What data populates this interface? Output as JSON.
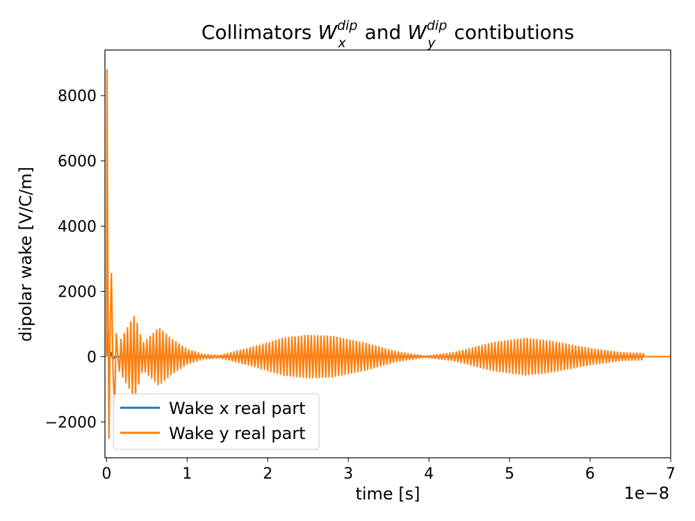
{
  "chart_data": {
    "type": "line",
    "title": {
      "prefix": "Collimators ",
      "w1": "W",
      "sub1": "x",
      "sup1": "dip",
      "mid": " and ",
      "w2": "W",
      "sub2": "y",
      "sup2": "dip",
      "suffix": " contibutions"
    },
    "xlabel": "time [s]",
    "ylabel": "dipolar wake [V/C/m]",
    "x_offset_label": "1e−8",
    "x_scale": 1e-08,
    "xlim": [
      -0.02,
      7.0
    ],
    "ylim": [
      -3100,
      9400
    ],
    "x_ticks": [
      0,
      1,
      2,
      3,
      4,
      5,
      6,
      7
    ],
    "x_tick_labels": [
      "0",
      "1",
      "2",
      "3",
      "4",
      "5",
      "6",
      "7"
    ],
    "y_ticks": [
      -2000,
      0,
      2000,
      4000,
      6000,
      8000
    ],
    "y_tick_labels": [
      "−2000",
      "0",
      "2000",
      "4000",
      "6000",
      "8000"
    ],
    "grid": false,
    "legend_position": "lower-left",
    "series": [
      {
        "name": "Wake x real part",
        "color": "#1f77b4",
        "samples": [
          [
            0.0,
            0
          ],
          [
            0.01,
            700
          ],
          [
            0.03,
            -300
          ],
          [
            0.05,
            150
          ],
          [
            0.08,
            -80
          ],
          [
            0.1,
            0
          ],
          [
            6.7,
            0
          ],
          [
            7.0,
            0
          ]
        ]
      },
      {
        "name": "Wake y real part",
        "color": "#ff7f0e",
        "peaks": [
          [
            0.0,
            8800
          ],
          [
            0.02,
            5000
          ],
          [
            0.04,
            -2500
          ],
          [
            0.07,
            2550
          ],
          [
            0.1,
            -1500
          ],
          [
            0.15,
            400
          ],
          [
            0.35,
            1280
          ],
          [
            0.45,
            400
          ],
          [
            0.65,
            880
          ],
          [
            0.8,
            550
          ],
          [
            1.0,
            230
          ],
          [
            1.2,
            70
          ],
          [
            1.4,
            40
          ],
          [
            1.8,
            280
          ],
          [
            2.2,
            570
          ],
          [
            2.5,
            650
          ],
          [
            2.8,
            620
          ],
          [
            3.2,
            420
          ],
          [
            3.6,
            150
          ],
          [
            3.95,
            20
          ],
          [
            4.3,
            120
          ],
          [
            4.8,
            430
          ],
          [
            5.2,
            560
          ],
          [
            5.5,
            480
          ],
          [
            6.0,
            250
          ],
          [
            6.4,
            120
          ],
          [
            6.67,
            100
          ],
          [
            6.68,
            0
          ],
          [
            7.0,
            0
          ]
        ],
        "period": 0.04,
        "end": 6.67
      }
    ]
  }
}
